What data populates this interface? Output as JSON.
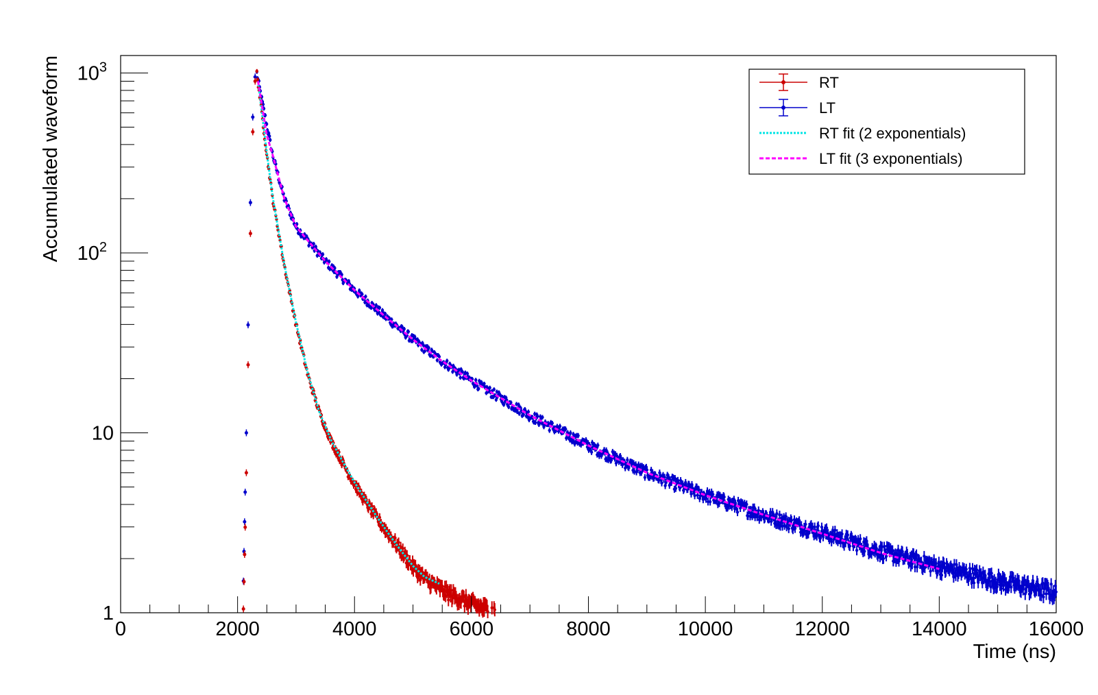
{
  "chart_data": {
    "type": "scatter",
    "xlabel": "Time (ns)",
    "ylabel": "Accumulated waveform",
    "x_range": [
      0,
      16000
    ],
    "y_range": [
      1,
      1000
    ],
    "y_scale": "log",
    "x_ticks": [
      0,
      2000,
      4000,
      6000,
      8000,
      10000,
      12000,
      14000,
      16000
    ],
    "y_tick_labels": [
      {
        "value": 1,
        "base": "1",
        "exp": ""
      },
      {
        "value": 10,
        "base": "10",
        "exp": ""
      },
      {
        "value": 100,
        "base": "10",
        "exp": "2"
      },
      {
        "value": 1000,
        "base": "10",
        "exp": "3"
      }
    ],
    "grid": false,
    "legend_position": "top-right",
    "legend": [
      {
        "label": "RT",
        "color": "#cc0000",
        "style": "marker"
      },
      {
        "label": "LT",
        "color": "#0000cc",
        "style": "marker"
      },
      {
        "label": "RT fit (2 exponentials)",
        "color": "#00e5e5",
        "style": "dotted"
      },
      {
        "label": "LT fit (3 exponentials)",
        "color": "#ff00ff",
        "style": "dashed"
      }
    ],
    "series": [
      {
        "name": "RT",
        "color": "#cc0000",
        "x": [
          2100,
          2150,
          2200,
          2250,
          2300,
          2330,
          2400,
          2500,
          2600,
          2800,
          3000,
          3200,
          3400,
          3600,
          3800,
          4000,
          4200,
          4400,
          4600,
          4800,
          5000,
          5200,
          5400,
          5600,
          5800,
          6000,
          6200,
          6400
        ],
        "y": [
          1.05,
          6,
          60,
          400,
          900,
          1000,
          650,
          350,
          200,
          85,
          40,
          21,
          13,
          9,
          6.8,
          5.2,
          4.1,
          3.3,
          2.7,
          2.2,
          1.8,
          1.55,
          1.4,
          1.28,
          1.2,
          1.12,
          1.06,
          1.02
        ]
      },
      {
        "name": "LT",
        "color": "#0000cc",
        "x": [
          2100,
          2150,
          2200,
          2250,
          2300,
          2330,
          2400,
          2600,
          2800,
          3000,
          3500,
          4000,
          4500,
          5000,
          5500,
          6000,
          7000,
          8000,
          9000,
          10000,
          11000,
          12000,
          13000,
          14000,
          15000,
          16000
        ],
        "y": [
          1.5,
          10,
          100,
          500,
          950,
          1000,
          750,
          350,
          200,
          140,
          90,
          62,
          45,
          33,
          25,
          19.5,
          12.5,
          8.5,
          6,
          4.5,
          3.5,
          2.8,
          2.2,
          1.8,
          1.5,
          1.3
        ]
      },
      {
        "name": "RT fit (2 exponentials)",
        "color": "#00e5e5",
        "x": [
          2350,
          2500,
          2600,
          2800,
          3000,
          3200,
          3400,
          3600,
          3800,
          4000,
          4200,
          4400,
          4600,
          4800,
          5000,
          5200,
          5450
        ],
        "y": [
          900,
          360,
          205,
          86,
          41,
          21.5,
          13,
          9.1,
          6.9,
          5.3,
          4.2,
          3.35,
          2.7,
          2.2,
          1.82,
          1.58,
          1.45
        ]
      },
      {
        "name": "LT fit (3 exponentials)",
        "color": "#ff00ff",
        "x": [
          2350,
          2500,
          2600,
          2800,
          3000,
          3500,
          4000,
          4500,
          5000,
          5500,
          6000,
          7000,
          8000,
          9000,
          10000,
          11000,
          12000,
          13000,
          14000
        ],
        "y": [
          900,
          450,
          350,
          200,
          140,
          90,
          62,
          45,
          33,
          25,
          19.5,
          12.5,
          8.5,
          6,
          4.5,
          3.5,
          2.75,
          2.15,
          1.75
        ]
      }
    ]
  }
}
